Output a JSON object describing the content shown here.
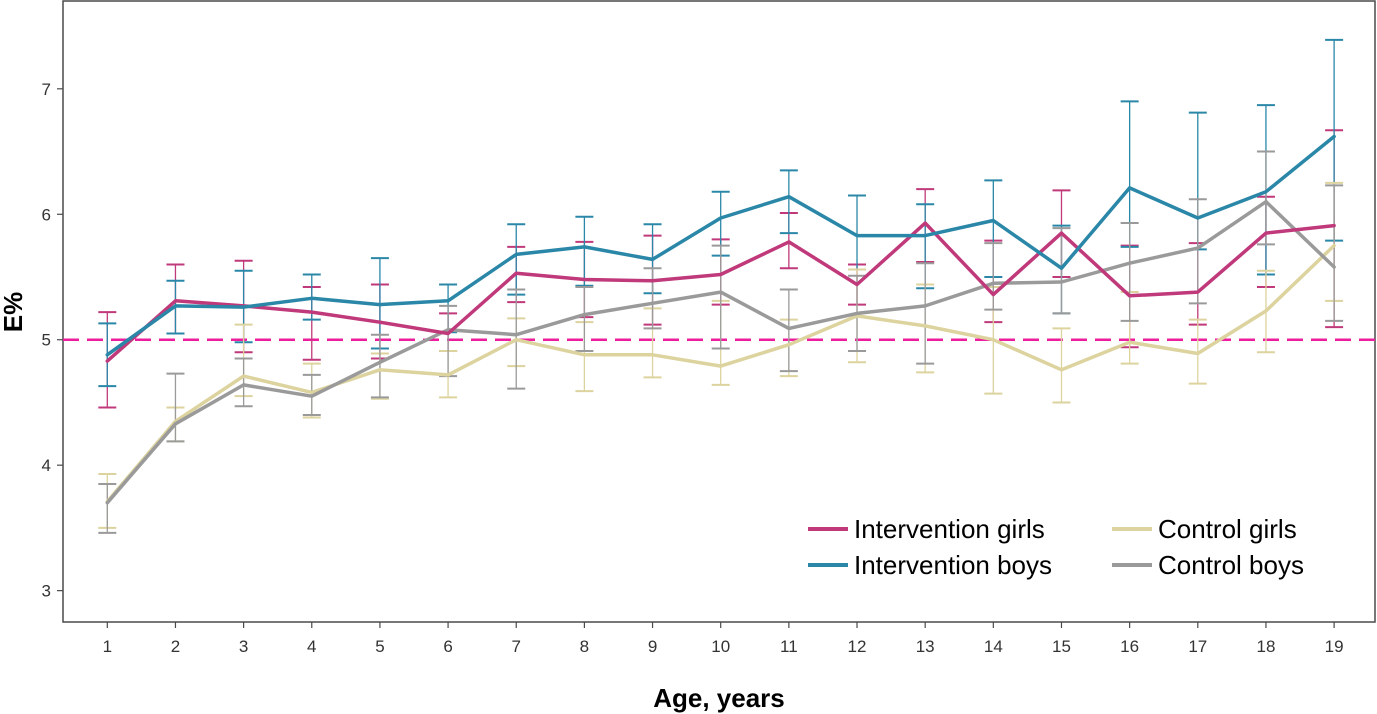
{
  "chart_data": {
    "type": "line",
    "xlabel": "Age, years",
    "ylabel": "E%",
    "x": [
      1,
      2,
      3,
      4,
      5,
      6,
      7,
      8,
      9,
      10,
      11,
      12,
      13,
      14,
      15,
      16,
      17,
      18,
      19
    ],
    "xlim": [
      0.35,
      19.6
    ],
    "ylim": [
      2.75,
      7.7
    ],
    "yticks": [
      3,
      4,
      5,
      6,
      7
    ],
    "reference_line": {
      "y": 5,
      "color": "#ee1d9e",
      "style": "dashed"
    },
    "error_bars": true,
    "grid": false,
    "legend_position": "bottom-right",
    "series": [
      {
        "name": "Intervention girls",
        "color": "#c0397a",
        "values": [
          4.83,
          5.31,
          5.27,
          5.22,
          5.14,
          5.05,
          5.53,
          5.48,
          5.47,
          5.52,
          5.78,
          5.44,
          5.93,
          5.36,
          5.85,
          5.35,
          5.38,
          5.85,
          5.91
        ],
        "lower": [
          4.46,
          5.05,
          4.9,
          4.84,
          4.85,
          4.91,
          5.3,
          5.18,
          5.12,
          5.28,
          5.57,
          5.28,
          5.62,
          5.14,
          5.5,
          4.94,
          5.12,
          5.42,
          5.1
        ],
        "upper": [
          5.22,
          5.6,
          5.63,
          5.42,
          5.44,
          5.21,
          5.74,
          5.78,
          5.83,
          5.8,
          6.01,
          5.6,
          6.2,
          5.79,
          6.19,
          5.75,
          5.77,
          6.14,
          6.67
        ]
      },
      {
        "name": "Intervention boys",
        "color": "#2a87a8",
        "values": [
          4.88,
          5.27,
          5.26,
          5.33,
          5.28,
          5.31,
          5.68,
          5.74,
          5.64,
          5.97,
          6.14,
          5.83,
          5.83,
          5.95,
          5.57,
          6.21,
          5.97,
          6.18,
          6.62
        ],
        "lower": [
          4.63,
          5.05,
          4.98,
          5.16,
          4.93,
          5.06,
          5.36,
          5.43,
          5.37,
          5.67,
          5.85,
          5.56,
          5.41,
          5.5,
          5.21,
          5.74,
          5.72,
          5.52,
          5.79
        ],
        "upper": [
          5.13,
          5.47,
          5.55,
          5.52,
          5.65,
          5.44,
          5.92,
          5.98,
          5.92,
          6.18,
          6.35,
          6.15,
          6.08,
          6.27,
          5.91,
          6.9,
          6.81,
          6.87,
          7.39
        ]
      },
      {
        "name": "Control girls",
        "color": "#dcd39e",
        "values": [
          3.71,
          4.35,
          4.71,
          4.58,
          4.76,
          4.72,
          5.0,
          4.88,
          4.88,
          4.79,
          4.96,
          5.19,
          5.11,
          5.0,
          4.76,
          4.98,
          4.89,
          5.23,
          5.75
        ],
        "lower": [
          3.5,
          4.19,
          4.55,
          4.38,
          4.53,
          4.54,
          4.79,
          4.59,
          4.7,
          4.64,
          4.71,
          4.82,
          4.74,
          4.57,
          4.5,
          4.81,
          4.65,
          4.9,
          5.31
        ],
        "upper": [
          3.93,
          4.46,
          5.12,
          4.81,
          4.89,
          4.91,
          5.17,
          5.14,
          5.25,
          5.31,
          5.16,
          5.56,
          5.44,
          5.42,
          5.09,
          5.38,
          5.16,
          5.55,
          6.25
        ]
      },
      {
        "name": "Control boys",
        "color": "#9a9a9a",
        "values": [
          3.7,
          4.33,
          4.64,
          4.55,
          4.82,
          5.08,
          5.04,
          5.2,
          5.29,
          5.38,
          5.09,
          5.21,
          5.27,
          5.45,
          5.46,
          5.61,
          5.73,
          6.1,
          5.58
        ],
        "lower": [
          3.46,
          4.19,
          4.47,
          4.4,
          4.54,
          4.71,
          4.61,
          4.91,
          5.09,
          4.93,
          4.75,
          4.91,
          4.81,
          5.24,
          5.21,
          5.15,
          5.29,
          5.76,
          5.15
        ],
        "upper": [
          3.85,
          4.73,
          4.85,
          4.72,
          5.04,
          5.27,
          5.4,
          5.42,
          5.57,
          5.75,
          5.4,
          5.51,
          5.61,
          5.77,
          5.89,
          5.93,
          6.12,
          6.5,
          6.23
        ]
      }
    ]
  }
}
